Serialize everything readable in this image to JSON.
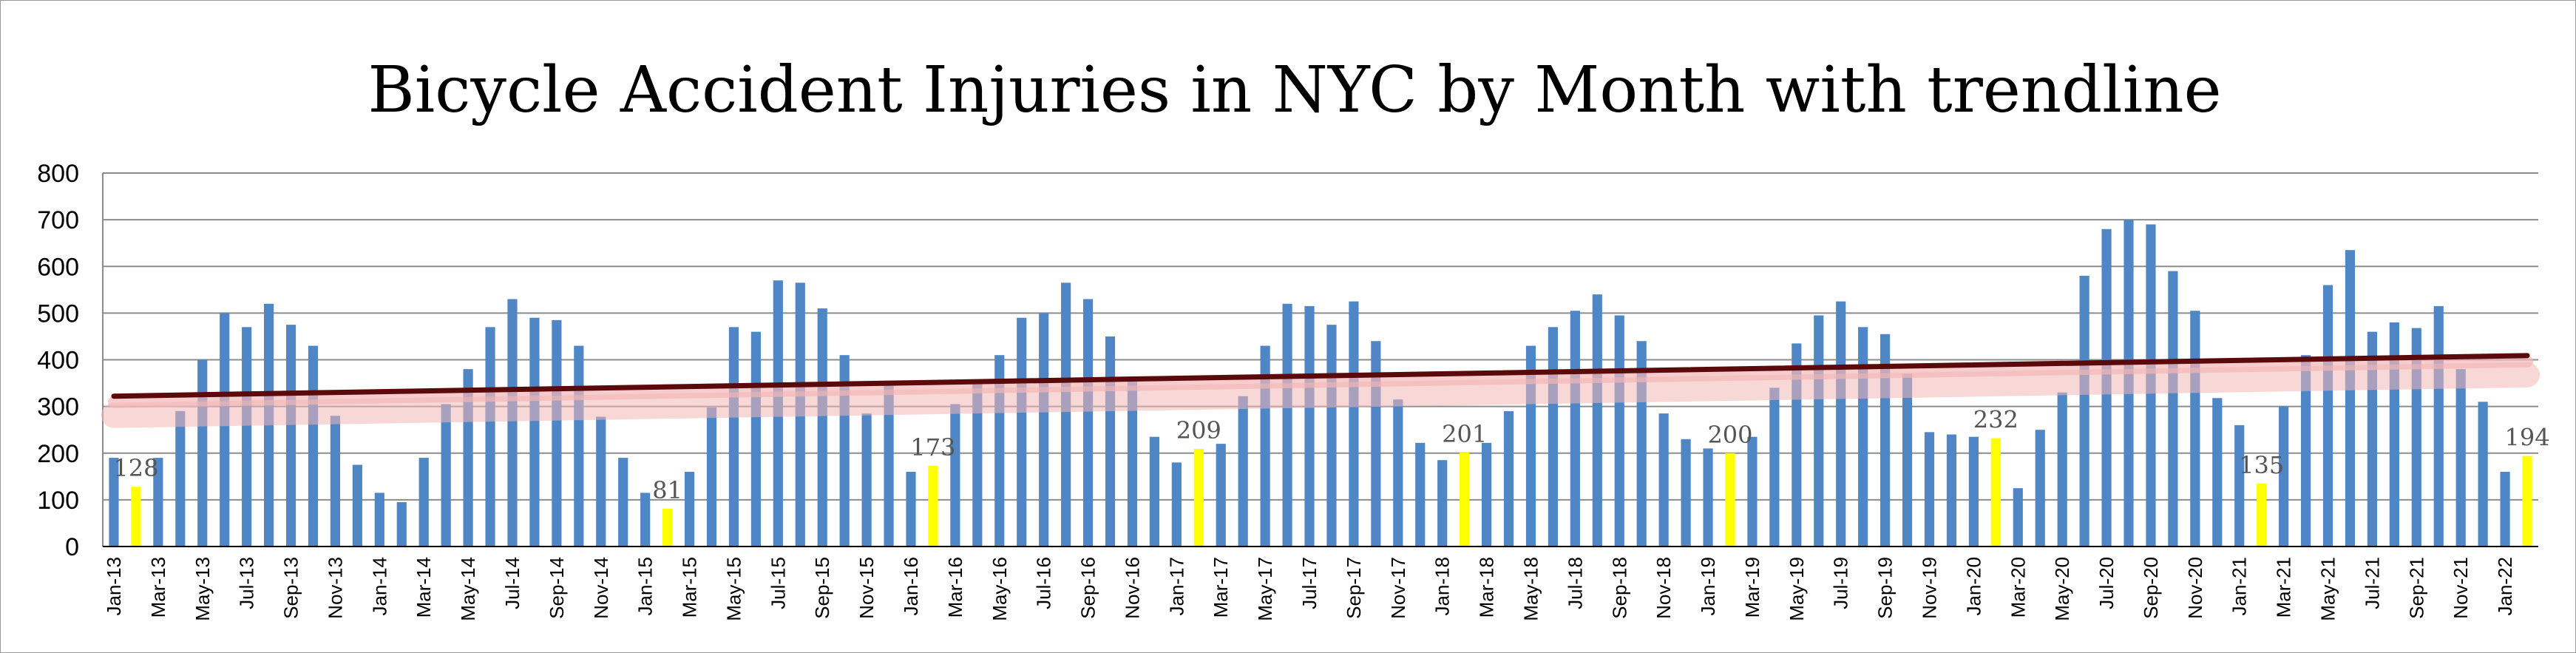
{
  "chart_data": {
    "type": "bar",
    "title": "Bicycle Accident Injuries in NYC by Month with trendline",
    "xlabel": "",
    "ylabel": "",
    "ylim": [
      0,
      800
    ],
    "yticks": [
      0,
      100,
      200,
      300,
      400,
      500,
      600,
      700,
      800
    ],
    "grid": true,
    "legend": "none",
    "colors": {
      "bar": "#4f86c6",
      "highlight": "#ffff00",
      "trend": "#5a0a0a",
      "trend_glow": "#f2b6b6",
      "grid": "#8c8c8c"
    },
    "categories": [
      "Jan-13",
      "Feb-13",
      "Mar-13",
      "Apr-13",
      "May-13",
      "Jun-13",
      "Jul-13",
      "Aug-13",
      "Sep-13",
      "Oct-13",
      "Nov-13",
      "Dec-13",
      "Jan-14",
      "Feb-14",
      "Mar-14",
      "Apr-14",
      "May-14",
      "Jun-14",
      "Jul-14",
      "Aug-14",
      "Sep-14",
      "Oct-14",
      "Nov-14",
      "Dec-14",
      "Jan-15",
      "Feb-15",
      "Mar-15",
      "Apr-15",
      "May-15",
      "Jun-15",
      "Jul-15",
      "Aug-15",
      "Sep-15",
      "Oct-15",
      "Nov-15",
      "Dec-15",
      "Jan-16",
      "Feb-16",
      "Mar-16",
      "Apr-16",
      "May-16",
      "Jun-16",
      "Jul-16",
      "Aug-16",
      "Sep-16",
      "Oct-16",
      "Nov-16",
      "Dec-16",
      "Jan-17",
      "Feb-17",
      "Mar-17",
      "Apr-17",
      "May-17",
      "Jun-17",
      "Jul-17",
      "Aug-17",
      "Sep-17",
      "Oct-17",
      "Nov-17",
      "Dec-17",
      "Jan-18",
      "Feb-18",
      "Mar-18",
      "Apr-18",
      "May-18",
      "Jun-18",
      "Jul-18",
      "Aug-18",
      "Sep-18",
      "Oct-18",
      "Nov-18",
      "Dec-18",
      "Jan-19",
      "Feb-19",
      "Mar-19",
      "Apr-19",
      "May-19",
      "Jun-19",
      "Jul-19",
      "Aug-19",
      "Sep-19",
      "Oct-19",
      "Nov-19",
      "Dec-19",
      "Jan-20",
      "Feb-20",
      "Mar-20",
      "Apr-20",
      "May-20",
      "Jun-20",
      "Jul-20",
      "Aug-20",
      "Sep-20",
      "Oct-20",
      "Nov-20",
      "Dec-20",
      "Jan-21",
      "Feb-21",
      "Mar-21",
      "Apr-21",
      "May-21",
      "Jun-21",
      "Jul-21",
      "Aug-21",
      "Sep-21",
      "Oct-21",
      "Nov-21",
      "Dec-21",
      "Jan-22",
      "Feb-22"
    ],
    "tick_labels": [
      "Jan-13",
      "",
      "Mar-13",
      "",
      "May-13",
      "",
      "Jul-13",
      "",
      "Sep-13",
      "",
      "Nov-13",
      "",
      "Jan-14",
      "",
      "Mar-14",
      "",
      "May-14",
      "",
      "Jul-14",
      "",
      "Sep-14",
      "",
      "Nov-14",
      "",
      "Jan-15",
      "",
      "Mar-15",
      "",
      "May-15",
      "",
      "Jul-15",
      "",
      "Sep-15",
      "",
      "Nov-15",
      "",
      "Jan-16",
      "",
      "Mar-16",
      "",
      "May-16",
      "",
      "Jul-16",
      "",
      "Sep-16",
      "",
      "Nov-16",
      "",
      "Jan-17",
      "",
      "Mar-17",
      "",
      "May-17",
      "",
      "Jul-17",
      "",
      "Sep-17",
      "",
      "Nov-17",
      "",
      "Jan-18",
      "",
      "Mar-18",
      "",
      "May-18",
      "",
      "Jul-18",
      "",
      "Sep-18",
      "",
      "Nov-18",
      "",
      "Jan-19",
      "",
      "Mar-19",
      "",
      "May-19",
      "",
      "Jul-19",
      "",
      "Sep-19",
      "",
      "Nov-19",
      "",
      "Jan-20",
      "",
      "Mar-20",
      "",
      "May-20",
      "",
      "Jul-20",
      "",
      "Sep-20",
      "",
      "Nov-20",
      "",
      "Jan-21",
      "",
      "Mar-21",
      "",
      "May-21",
      "",
      "Jul-21",
      "",
      "Sep-21",
      "",
      "Nov-21",
      "",
      "Jan-22",
      ""
    ],
    "values": [
      190,
      128,
      190,
      290,
      400,
      500,
      470,
      520,
      475,
      430,
      280,
      175,
      115,
      95,
      190,
      305,
      380,
      470,
      530,
      490,
      485,
      430,
      278,
      190,
      115,
      81,
      160,
      298,
      470,
      460,
      570,
      565,
      510,
      410,
      285,
      355,
      160,
      173,
      305,
      355,
      410,
      490,
      500,
      565,
      530,
      450,
      355,
      235,
      180,
      209,
      220,
      322,
      430,
      520,
      515,
      475,
      525,
      440,
      315,
      222,
      185,
      201,
      222,
      290,
      430,
      470,
      505,
      540,
      495,
      440,
      285,
      230,
      210,
      200,
      235,
      340,
      435,
      495,
      525,
      470,
      455,
      370,
      245,
      240,
      235,
      232,
      125,
      250,
      330,
      580,
      680,
      700,
      690,
      590,
      505,
      318,
      260,
      135,
      300,
      410,
      560,
      635,
      460,
      480,
      468,
      515,
      380,
      310,
      160,
      194
    ],
    "highlight_indices": [
      1,
      25,
      37,
      49,
      61,
      73,
      85,
      97,
      109
    ],
    "data_labels": [
      {
        "index": 1,
        "text": "128"
      },
      {
        "index": 25,
        "text": "81"
      },
      {
        "index": 37,
        "text": "173"
      },
      {
        "index": 49,
        "text": "209"
      },
      {
        "index": 61,
        "text": "201"
      },
      {
        "index": 73,
        "text": "200"
      },
      {
        "index": 85,
        "text": "232"
      },
      {
        "index": 97,
        "text": "135"
      },
      {
        "index": 109,
        "text": "194"
      }
    ],
    "trendline": {
      "start": 322,
      "end": 409
    }
  }
}
